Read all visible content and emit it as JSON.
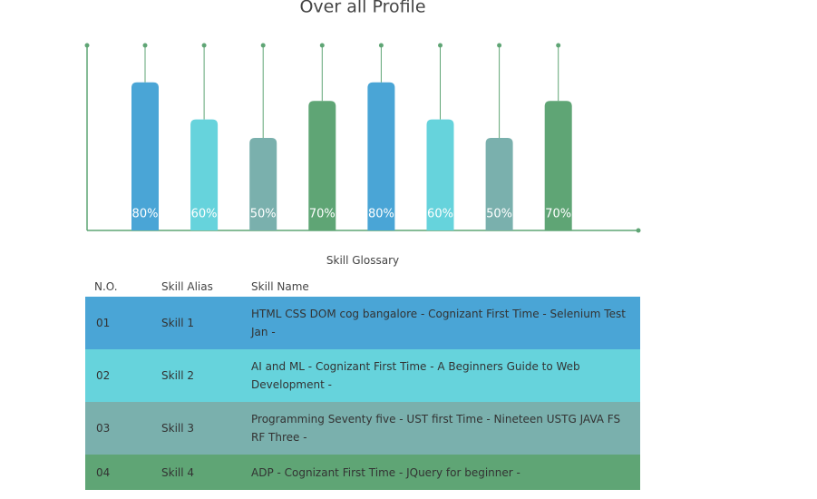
{
  "chart_data": {
    "type": "bar",
    "title": "Over all Profile",
    "categories": [
      null,
      null,
      null,
      null,
      null,
      null,
      null,
      null
    ],
    "values": [
      80,
      60,
      50,
      70,
      80,
      60,
      50,
      70
    ],
    "value_labels": [
      "80%",
      "60%",
      "50%",
      "70%",
      "80%",
      "60%",
      "50%",
      "70%"
    ],
    "colors": [
      "#4aa5d6",
      "#66d3dc",
      "#7ab0ad",
      "#5fa575",
      "#4aa5d6",
      "#66d3dc",
      "#7ab0ad",
      "#5fa575"
    ],
    "ylim": [
      0,
      100
    ]
  },
  "glossary": {
    "title": "Skill Glossary",
    "columns": [
      "N.O.",
      "Skill Alias",
      "Skill Name"
    ],
    "rows": [
      [
        "01",
        "Skill 1",
        "HTML CSS DOM cog bangalore - Cognizant First Time - Selenium Test Jan -"
      ],
      [
        "02",
        "Skill 2",
        "AI and ML - Cognizant First Time - A Beginners Guide to Web Development -"
      ],
      [
        "03",
        "Skill 3",
        "Programming Seventy five - UST first Time - Nineteen USTG JAVA FS RF Three -"
      ],
      [
        "04",
        "Skill 4",
        "ADP - Cognizant First Time - JQuery for beginner -"
      ]
    ]
  }
}
